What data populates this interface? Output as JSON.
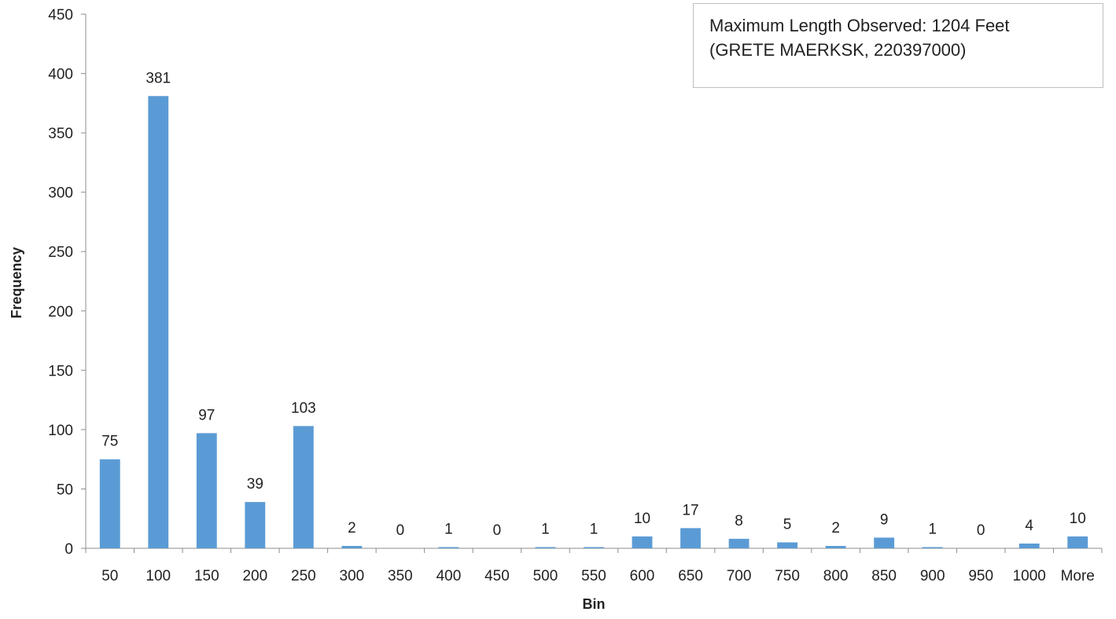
{
  "chart_data": {
    "type": "bar",
    "title": "",
    "xlabel": "Bin",
    "ylabel": "Frequency",
    "categories": [
      "50",
      "100",
      "150",
      "200",
      "250",
      "300",
      "350",
      "400",
      "450",
      "500",
      "550",
      "600",
      "650",
      "700",
      "750",
      "800",
      "850",
      "900",
      "950",
      "1000",
      "More"
    ],
    "values": [
      75,
      381,
      97,
      39,
      103,
      2,
      0,
      1,
      0,
      1,
      1,
      10,
      17,
      8,
      5,
      2,
      9,
      1,
      0,
      4,
      10
    ],
    "ylim": [
      0,
      450
    ],
    "yticks": [
      0,
      50,
      100,
      150,
      200,
      250,
      300,
      350,
      400,
      450
    ],
    "data_labels": true,
    "grid": false,
    "legend": "none",
    "bar_color": "#5b9bd5",
    "annotation": {
      "line1": "Maximum Length Observed: 1204 Feet",
      "line2": "(GRETE MAERKSK, 220397000)"
    }
  }
}
